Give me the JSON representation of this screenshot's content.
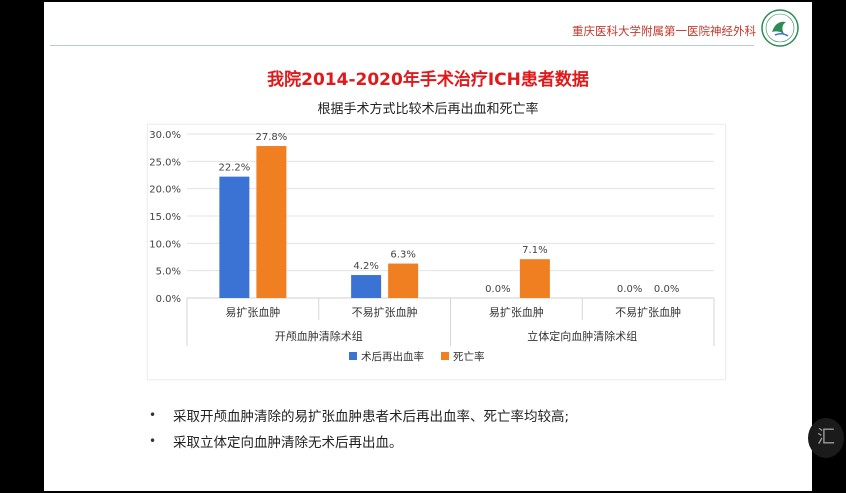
{
  "header": {
    "hospital_name": "重庆医科大学附属第一医院神经外科"
  },
  "watermark_text": "汇",
  "slide": {
    "title": "我院2014-2020年手术治疗ICH患者数据",
    "subtitle": "根据手术方式比较术后再出血和死亡率"
  },
  "chart_data": {
    "type": "bar",
    "categories": [
      "易扩张血肿",
      "不易扩张血肿",
      "易扩张血肿",
      "不易扩张血肿"
    ],
    "groups": [
      {
        "label": "开颅血肿清除术组",
        "categories": [
          0,
          1
        ]
      },
      {
        "label": "立体定向血肿清除术组",
        "categories": [
          2,
          3
        ]
      }
    ],
    "series": [
      {
        "name": "术后再出血率",
        "color": "#3a73d4",
        "values": [
          22.2,
          4.2,
          0.0,
          0.0
        ],
        "labels": [
          "22.2%",
          "4.2%",
          "0.0%",
          "0.0%"
        ]
      },
      {
        "name": "死亡率",
        "color": "#f07f22",
        "values": [
          27.8,
          6.3,
          7.1,
          0.0
        ],
        "labels": [
          "27.8%",
          "6.3%",
          "7.1%",
          "0.0%"
        ]
      }
    ],
    "ylim": [
      0,
      30
    ],
    "yticks": [
      "0.0%",
      "5.0%",
      "10.0%",
      "15.0%",
      "20.0%",
      "25.0%",
      "30.0%"
    ],
    "ytick_values": [
      0,
      5,
      10,
      15,
      20,
      25,
      30
    ],
    "grid": true,
    "legend_position": "bottom"
  },
  "bullets": [
    {
      "marker": "•",
      "text": "采取开颅血肿清除的易扩张血肿患者术后再出血率、死亡率均较高;"
    },
    {
      "marker": "•",
      "text": "采取立体定向血肿清除无术后再出血。"
    }
  ]
}
